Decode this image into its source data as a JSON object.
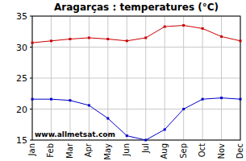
{
  "chart_data": {
    "type": "line",
    "title": "Aragarças : temperatures (°C)",
    "annotation": "www.allmetsat.com",
    "categories": [
      "Jan",
      "Feb",
      "Mar",
      "Apr",
      "May",
      "Jun",
      "Jul",
      "Aug",
      "Sep",
      "Oct",
      "Nov",
      "Dec"
    ],
    "series": [
      {
        "color": "#cc0000",
        "marker": "square",
        "values": [
          30.7,
          31.0,
          31.3,
          31.5,
          31.3,
          31.0,
          31.5,
          33.3,
          33.5,
          33.0,
          31.7,
          31.0
        ]
      },
      {
        "color": "#0000cc",
        "marker": "square",
        "values": [
          21.6,
          21.6,
          21.4,
          20.6,
          18.5,
          15.7,
          15.0,
          16.7,
          20.0,
          21.6,
          21.8,
          21.6
        ]
      }
    ],
    "ylim": [
      15,
      35
    ],
    "yticks": [
      15,
      20,
      25,
      30,
      35
    ],
    "grid": true
  }
}
